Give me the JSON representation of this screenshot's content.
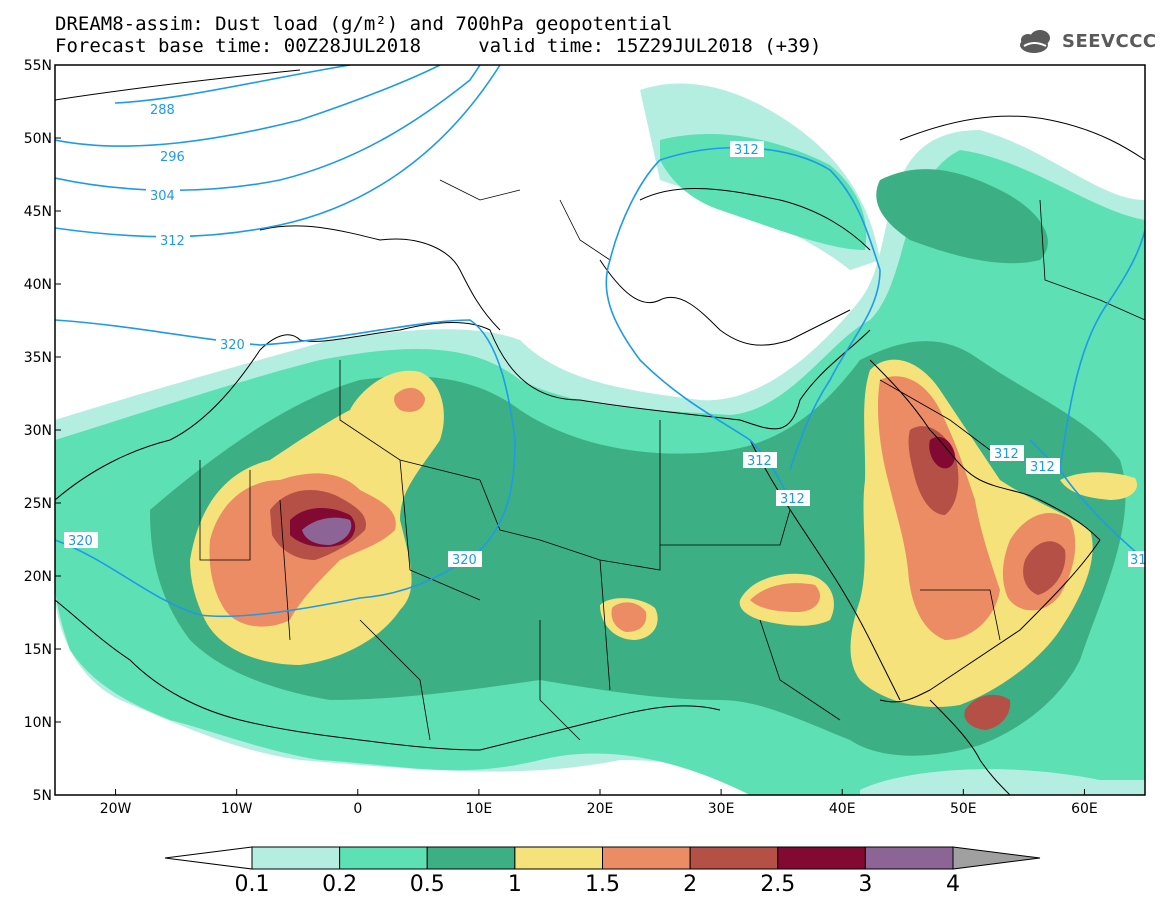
{
  "title": {
    "line1": "DREAM8-assim: Dust load (g/m²) and 700hPa geopotential",
    "line2": "Forecast base time: 00Z28JUL2018     valid time: 15Z29JUL2018 (+39)"
  },
  "logo": {
    "text": "SEEVCCC",
    "icon": "cloud-icon"
  },
  "map": {
    "lat_range": [
      5,
      55
    ],
    "lon_range": [
      -25,
      65
    ],
    "lat_labels": [
      "55N",
      "50N",
      "45N",
      "40N",
      "35N",
      "30N",
      "25N",
      "20N",
      "15N",
      "10N",
      "5N"
    ],
    "lon_labels": [
      "20W",
      "10W",
      "0",
      "10E",
      "20E",
      "30E",
      "40E",
      "50E",
      "60E"
    ],
    "contour_labels": [
      "288",
      "296",
      "304",
      "312",
      "320",
      "320",
      "320",
      "312",
      "312",
      "312",
      "312",
      "312",
      "31"
    ]
  },
  "colorbar": {
    "labels": [
      "0.1",
      "0.2",
      "0.5",
      "1",
      "1.5",
      "2",
      "2.5",
      "3",
      "4"
    ],
    "colors": [
      "#b4eee0",
      "#5ce0b4",
      "#3daf84",
      "#f5e27a",
      "#eb8c64",
      "#b45046",
      "#820a32",
      "#8c6496",
      "#a0a0a0"
    ]
  },
  "colors": {
    "contour": "#1e9be6",
    "border": "#000000"
  }
}
